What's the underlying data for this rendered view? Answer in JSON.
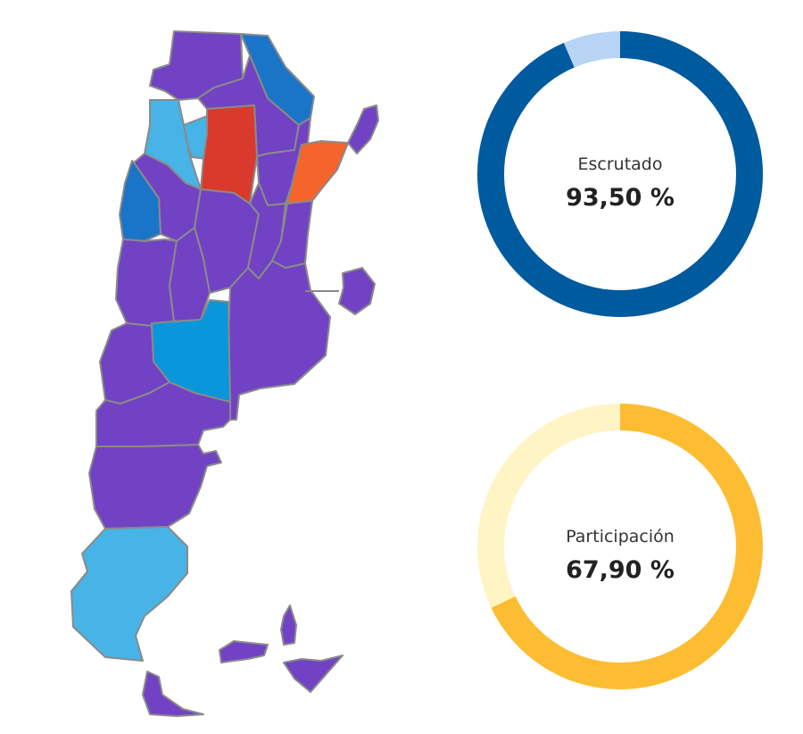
{
  "colors": {
    "purple": "#7142c3",
    "light_blue": "#48b3e6",
    "mid_blue": "#1a75c9",
    "cyan_blue": "#0a96da",
    "red": "#d93a2b",
    "orange": "#f5642a",
    "border": "#8a8a8a"
  },
  "map": {
    "provinces": [
      {
        "id": "jujuy",
        "color": "purple"
      },
      {
        "id": "salta",
        "color": "purple"
      },
      {
        "id": "formosa",
        "color": "mid_blue"
      },
      {
        "id": "misiones",
        "color": "purple"
      },
      {
        "id": "chaco",
        "color": "purple"
      },
      {
        "id": "catamarca",
        "color": "light_blue"
      },
      {
        "id": "tucuman",
        "color": "light_blue"
      },
      {
        "id": "santiago-del-estero",
        "color": "red"
      },
      {
        "id": "corrientes",
        "color": "orange"
      },
      {
        "id": "la-rioja",
        "color": "purple"
      },
      {
        "id": "san-juan",
        "color": "mid_blue"
      },
      {
        "id": "cordoba",
        "color": "purple"
      },
      {
        "id": "santa-fe",
        "color": "purple"
      },
      {
        "id": "entre-rios",
        "color": "purple"
      },
      {
        "id": "mendoza",
        "color": "purple"
      },
      {
        "id": "san-luis",
        "color": "purple"
      },
      {
        "id": "buenos-aires",
        "color": "purple"
      },
      {
        "id": "caba",
        "color": "purple"
      },
      {
        "id": "la-pampa",
        "color": "cyan_blue"
      },
      {
        "id": "neuquen",
        "color": "purple"
      },
      {
        "id": "rio-negro",
        "color": "purple"
      },
      {
        "id": "chubut",
        "color": "purple"
      },
      {
        "id": "santa-cruz",
        "color": "light_blue"
      },
      {
        "id": "tierra-del-fuego",
        "color": "purple"
      },
      {
        "id": "malvinas",
        "color": "purple"
      },
      {
        "id": "georgias",
        "color": "purple"
      },
      {
        "id": "antartida",
        "color": "purple"
      }
    ]
  },
  "gauges": [
    {
      "id": "escrutado",
      "label": "Escrutado",
      "value_text": "93,50 %",
      "value": 93.5,
      "fill_color": "#005a9e",
      "track_color": "#b7d4f5"
    },
    {
      "id": "participacion",
      "label": "Participación",
      "value_text": "67,90 %",
      "value": 67.9,
      "fill_color": "#fdbd33",
      "track_color": "#fff4c4"
    }
  ]
}
